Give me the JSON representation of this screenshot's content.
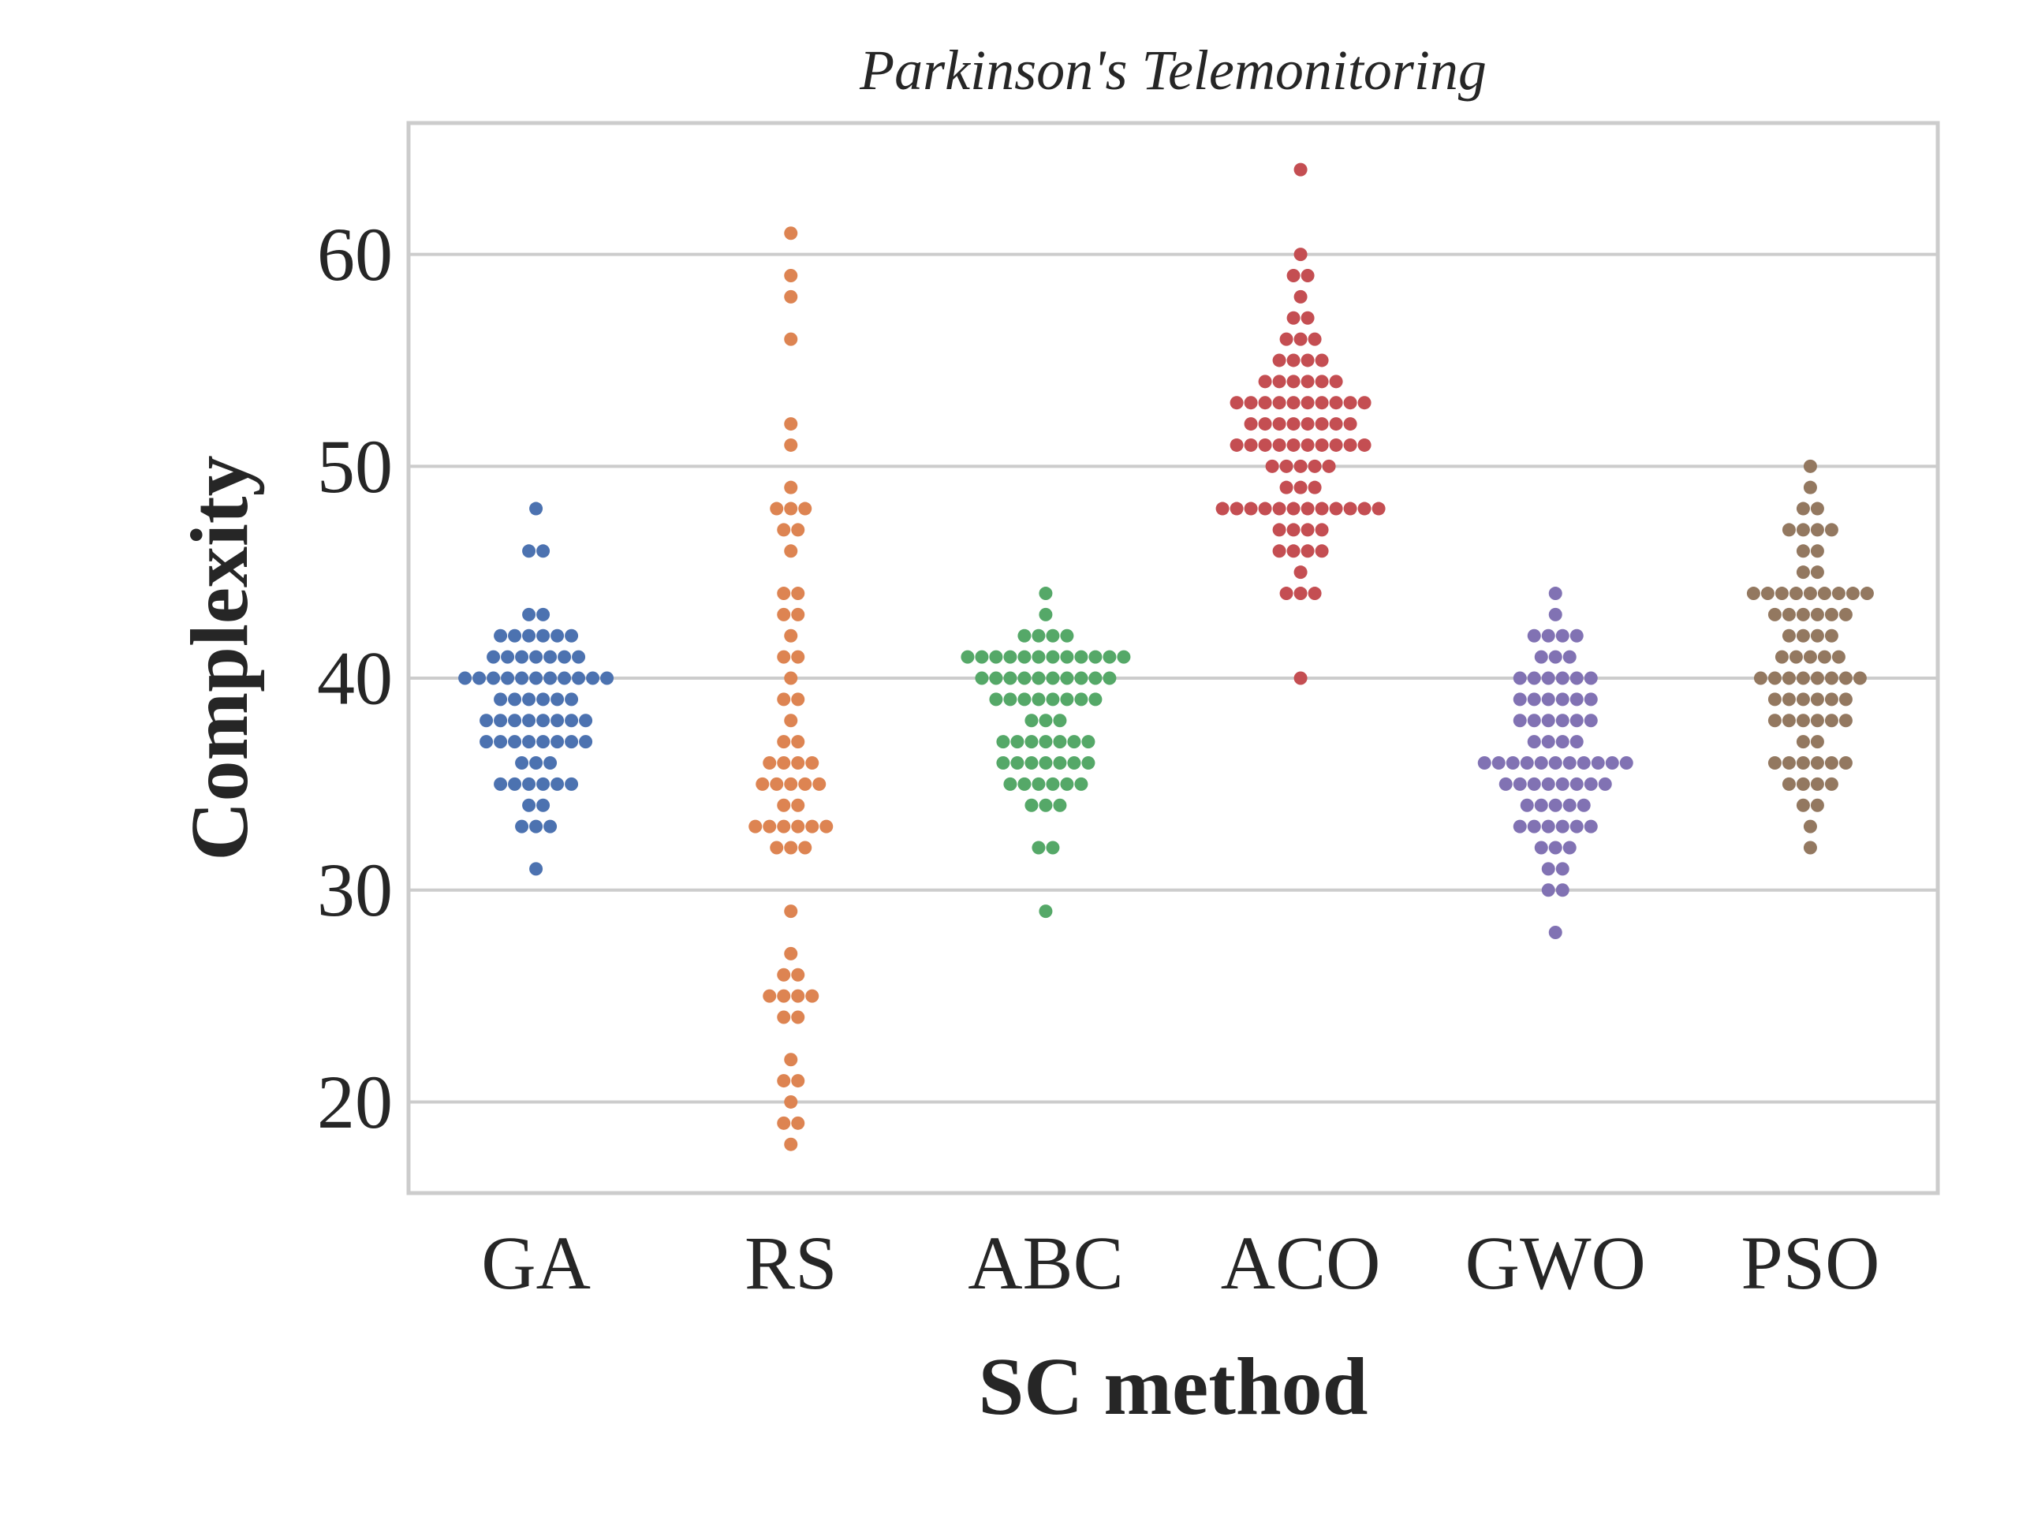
{
  "chart_data": {
    "type": "scatter",
    "subtype": "swarm",
    "title": "Parkinson's Telemonitoring",
    "xlabel": "SC method",
    "ylabel": "Complexity",
    "categories": [
      "GA",
      "RS",
      "ABC",
      "ACO",
      "GWO",
      "PSO"
    ],
    "ylim": [
      15.7,
      66.2
    ],
    "yticks": [
      20,
      30,
      40,
      50,
      60
    ],
    "ytick_labels": [
      "20",
      "30",
      "40",
      "50",
      "60"
    ],
    "grid": "horizontal",
    "legend": "none",
    "series": [
      {
        "color": "#4c72b0",
        "values": [
          48,
          46,
          46,
          43,
          43,
          42,
          42,
          42,
          42,
          42,
          42,
          41,
          41,
          41,
          41,
          41,
          41,
          41,
          40,
          40,
          40,
          40,
          40,
          40,
          40,
          40,
          40,
          40,
          40,
          39,
          39,
          39,
          39,
          39,
          39,
          38,
          38,
          38,
          38,
          38,
          38,
          38,
          38,
          37,
          37,
          37,
          37,
          37,
          37,
          37,
          37,
          36,
          36,
          36,
          35,
          35,
          35,
          35,
          35,
          35,
          34,
          34,
          33,
          33,
          33,
          31
        ]
      },
      {
        "color": "#dd8452",
        "values": [
          61,
          59,
          58,
          56,
          52,
          51,
          49,
          48,
          48,
          48,
          47,
          47,
          46,
          44,
          44,
          43,
          43,
          42,
          41,
          41,
          40,
          39,
          39,
          38,
          37,
          37,
          36,
          36,
          36,
          36,
          35,
          35,
          35,
          35,
          35,
          34,
          34,
          33,
          33,
          33,
          33,
          33,
          33,
          32,
          32,
          32,
          29,
          27,
          26,
          26,
          25,
          25,
          25,
          25,
          24,
          24,
          22,
          21,
          21,
          20,
          19,
          19,
          18
        ]
      },
      {
        "color": "#55a868",
        "values": [
          44,
          43,
          42,
          42,
          42,
          42,
          41,
          41,
          41,
          41,
          41,
          41,
          41,
          41,
          41,
          41,
          41,
          41,
          40,
          40,
          40,
          40,
          40,
          40,
          40,
          40,
          40,
          40,
          39,
          39,
          39,
          39,
          39,
          39,
          39,
          39,
          38,
          38,
          38,
          37,
          37,
          37,
          37,
          37,
          37,
          37,
          36,
          36,
          36,
          36,
          36,
          36,
          36,
          35,
          35,
          35,
          35,
          35,
          35,
          34,
          34,
          34,
          32,
          32,
          29
        ]
      },
      {
        "color": "#c44e52",
        "values": [
          64,
          60,
          59,
          59,
          58,
          57,
          57,
          56,
          56,
          56,
          55,
          55,
          55,
          55,
          54,
          54,
          54,
          54,
          54,
          54,
          53,
          53,
          53,
          53,
          53,
          53,
          53,
          53,
          53,
          53,
          52,
          52,
          52,
          52,
          52,
          52,
          52,
          52,
          51,
          51,
          51,
          51,
          51,
          51,
          51,
          51,
          51,
          51,
          50,
          50,
          50,
          50,
          50,
          49,
          49,
          49,
          48,
          48,
          48,
          48,
          48,
          48,
          48,
          48,
          48,
          48,
          48,
          48,
          47,
          47,
          47,
          47,
          46,
          46,
          46,
          46,
          45,
          44,
          44,
          44,
          40
        ]
      },
      {
        "color": "#8172b3",
        "values": [
          44,
          43,
          42,
          42,
          42,
          42,
          41,
          41,
          41,
          40,
          40,
          40,
          40,
          40,
          40,
          39,
          39,
          39,
          39,
          39,
          39,
          38,
          38,
          38,
          38,
          38,
          38,
          37,
          37,
          37,
          37,
          36,
          36,
          36,
          36,
          36,
          36,
          36,
          36,
          36,
          36,
          36,
          35,
          35,
          35,
          35,
          35,
          35,
          35,
          35,
          34,
          34,
          34,
          34,
          34,
          33,
          33,
          33,
          33,
          33,
          33,
          32,
          32,
          32,
          31,
          31,
          30,
          30,
          28
        ]
      },
      {
        "color": "#937860",
        "values": [
          50,
          49,
          48,
          48,
          47,
          47,
          47,
          47,
          46,
          46,
          45,
          45,
          44,
          44,
          44,
          44,
          44,
          44,
          44,
          44,
          44,
          43,
          43,
          43,
          43,
          43,
          43,
          42,
          42,
          42,
          42,
          41,
          41,
          41,
          41,
          41,
          40,
          40,
          40,
          40,
          40,
          40,
          40,
          40,
          39,
          39,
          39,
          39,
          39,
          39,
          38,
          38,
          38,
          38,
          38,
          38,
          37,
          37,
          36,
          36,
          36,
          36,
          36,
          36,
          35,
          35,
          35,
          35,
          34,
          34,
          33,
          32
        ]
      }
    ]
  }
}
